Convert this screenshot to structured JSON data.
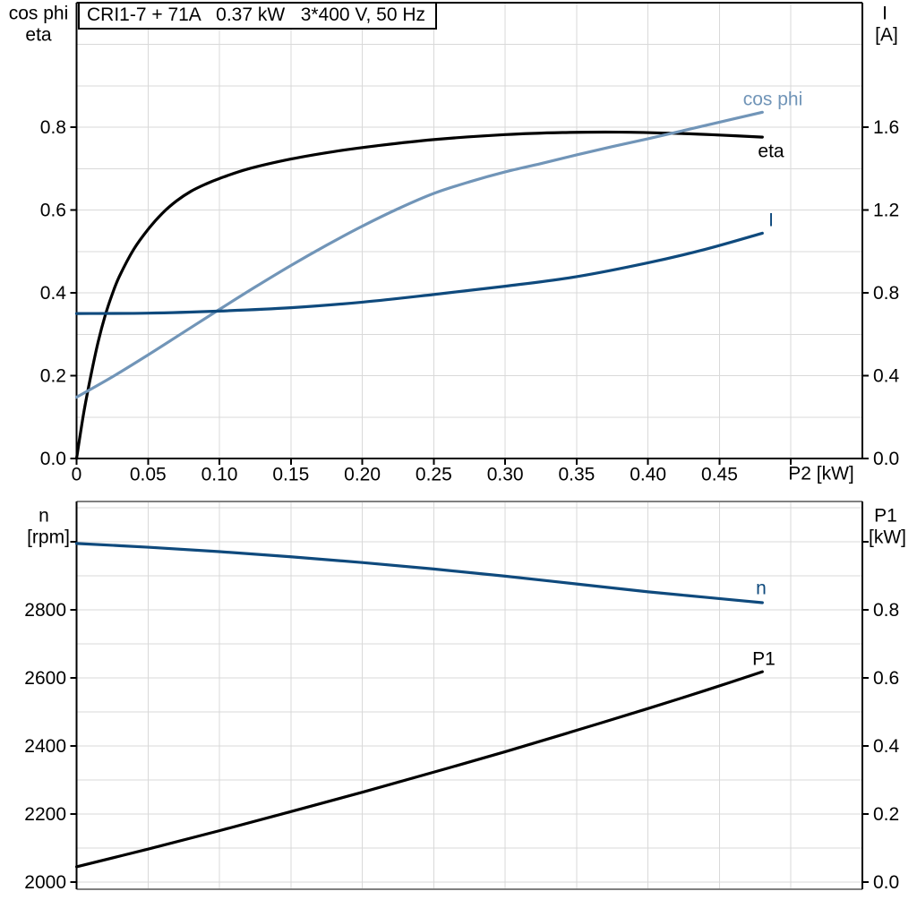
{
  "colors": {
    "black": "#000000",
    "dark_blue": "#0F4A7D",
    "light_blue": "#7195B8",
    "grid": "#D9D9D9",
    "frame_gray": "#808080",
    "background": "#FFFFFF"
  },
  "chart_data": [
    {
      "id": "top-chart",
      "type": "line",
      "title": "CRI1-7 + 71A   0.37 kW   3*400 V, 50 Hz",
      "x_axis": {
        "label": "P2 [kW]",
        "range": [
          0,
          0.55
        ],
        "ticks": [
          0,
          0.05,
          0.1,
          0.15,
          0.2,
          0.25,
          0.3,
          0.35,
          0.4,
          0.45
        ],
        "tick_labels": [
          "0",
          "0.05",
          "0.10",
          "0.15",
          "0.20",
          "0.25",
          "0.30",
          "0.35",
          "0.40",
          "0.45"
        ],
        "unlabeled_ticks": [
          0.5
        ],
        "grid_step": 0.05,
        "grid": true
      },
      "left_axis": {
        "title_line1": "cos phi",
        "title_line2": "eta",
        "range": [
          0,
          1.1
        ],
        "ticks": [
          0.0,
          0.2,
          0.4,
          0.6,
          0.8
        ],
        "tick_labels": [
          "0.0",
          "0.2",
          "0.4",
          "0.6",
          "0.8"
        ],
        "grid_step": 0.1,
        "grid": true
      },
      "right_axis": {
        "title_line1": "I",
        "title_line2": "[A]",
        "range": [
          0,
          2.2
        ],
        "ticks": [
          0.0,
          0.4,
          0.8,
          1.2,
          1.6
        ],
        "tick_labels": [
          "0.0",
          "0.4",
          "0.8",
          "1.2",
          "1.6"
        ]
      },
      "series": [
        {
          "name": "eta",
          "label": "eta",
          "axis": "left",
          "color": "#000000",
          "points": [
            [
              0,
              0
            ],
            [
              0.005,
              0.11
            ],
            [
              0.01,
              0.2
            ],
            [
              0.015,
              0.28
            ],
            [
              0.02,
              0.345
            ],
            [
              0.025,
              0.397
            ],
            [
              0.03,
              0.44
            ],
            [
              0.04,
              0.505
            ],
            [
              0.05,
              0.553
            ],
            [
              0.06,
              0.592
            ],
            [
              0.07,
              0.622
            ],
            [
              0.08,
              0.645
            ],
            [
              0.09,
              0.662
            ],
            [
              0.1,
              0.676
            ],
            [
              0.12,
              0.699
            ],
            [
              0.15,
              0.723
            ],
            [
              0.18,
              0.741
            ],
            [
              0.21,
              0.755
            ],
            [
              0.25,
              0.77
            ],
            [
              0.3,
              0.782
            ],
            [
              0.34,
              0.787
            ],
            [
              0.38,
              0.788
            ],
            [
              0.42,
              0.785
            ],
            [
              0.45,
              0.781
            ],
            [
              0.48,
              0.776
            ]
          ]
        },
        {
          "name": "cos phi",
          "label": "cos phi",
          "axis": "left",
          "color": "#7195B8",
          "points": [
            [
              0,
              0.148
            ],
            [
              0.025,
              0.197
            ],
            [
              0.05,
              0.25
            ],
            [
              0.075,
              0.305
            ],
            [
              0.1,
              0.36
            ],
            [
              0.125,
              0.414
            ],
            [
              0.15,
              0.466
            ],
            [
              0.175,
              0.515
            ],
            [
              0.2,
              0.561
            ],
            [
              0.225,
              0.603
            ],
            [
              0.25,
              0.64
            ],
            [
              0.275,
              0.668
            ],
            [
              0.3,
              0.692
            ],
            [
              0.325,
              0.712
            ],
            [
              0.35,
              0.733
            ],
            [
              0.375,
              0.753
            ],
            [
              0.4,
              0.772
            ],
            [
              0.425,
              0.792
            ],
            [
              0.45,
              0.812
            ],
            [
              0.48,
              0.836
            ]
          ]
        },
        {
          "name": "I",
          "label": "I",
          "axis": "right",
          "color": "#0F4A7D",
          "points": [
            [
              0,
              0.7
            ],
            [
              0.05,
              0.702
            ],
            [
              0.1,
              0.712
            ],
            [
              0.15,
              0.728
            ],
            [
              0.2,
              0.755
            ],
            [
              0.25,
              0.792
            ],
            [
              0.3,
              0.832
            ],
            [
              0.35,
              0.878
            ],
            [
              0.4,
              0.945
            ],
            [
              0.44,
              1.01
            ],
            [
              0.48,
              1.088
            ]
          ]
        }
      ]
    },
    {
      "id": "bottom-chart",
      "type": "line",
      "x_axis": {
        "range": [
          0,
          0.55
        ],
        "grid_step": 0.05,
        "grid": true,
        "ticks": [],
        "tick_labels": []
      },
      "left_axis": {
        "title_line1": "n",
        "title_line2": "[rpm]",
        "range": [
          1980,
          3118
        ],
        "ticks": [
          2000,
          2200,
          2400,
          2600,
          2800
        ],
        "tick_labels": [
          "2000",
          "2200",
          "2400",
          "2600",
          "2800"
        ],
        "unlabeled_ticks": [
          3000
        ],
        "grid_step": 100,
        "grid": true
      },
      "right_axis": {
        "title_line1": "P1",
        "title_line2": "[kW]",
        "range": [
          -0.013,
          1.113
        ],
        "ticks": [
          0.0,
          0.2,
          0.4,
          0.6,
          0.8
        ],
        "tick_labels": [
          "0.0",
          "0.2",
          "0.4",
          "0.6",
          "0.8"
        ],
        "unlabeled_ticks": [
          1.0
        ]
      },
      "series": [
        {
          "name": "n",
          "label": "n",
          "axis": "left",
          "color": "#0F4A7D",
          "points": [
            [
              0,
              2995
            ],
            [
              0.05,
              2984
            ],
            [
              0.1,
              2971
            ],
            [
              0.15,
              2956
            ],
            [
              0.2,
              2939
            ],
            [
              0.25,
              2920
            ],
            [
              0.3,
              2899
            ],
            [
              0.35,
              2876
            ],
            [
              0.4,
              2853
            ],
            [
              0.44,
              2837
            ],
            [
              0.48,
              2821
            ]
          ]
        },
        {
          "name": "P1",
          "label": "P1",
          "axis": "right",
          "color": "#000000",
          "points": [
            [
              0,
              0.045
            ],
            [
              0.05,
              0.097
            ],
            [
              0.1,
              0.151
            ],
            [
              0.15,
              0.207
            ],
            [
              0.2,
              0.264
            ],
            [
              0.25,
              0.323
            ],
            [
              0.3,
              0.383
            ],
            [
              0.35,
              0.446
            ],
            [
              0.4,
              0.51
            ],
            [
              0.44,
              0.563
            ],
            [
              0.48,
              0.618
            ]
          ]
        }
      ]
    }
  ]
}
